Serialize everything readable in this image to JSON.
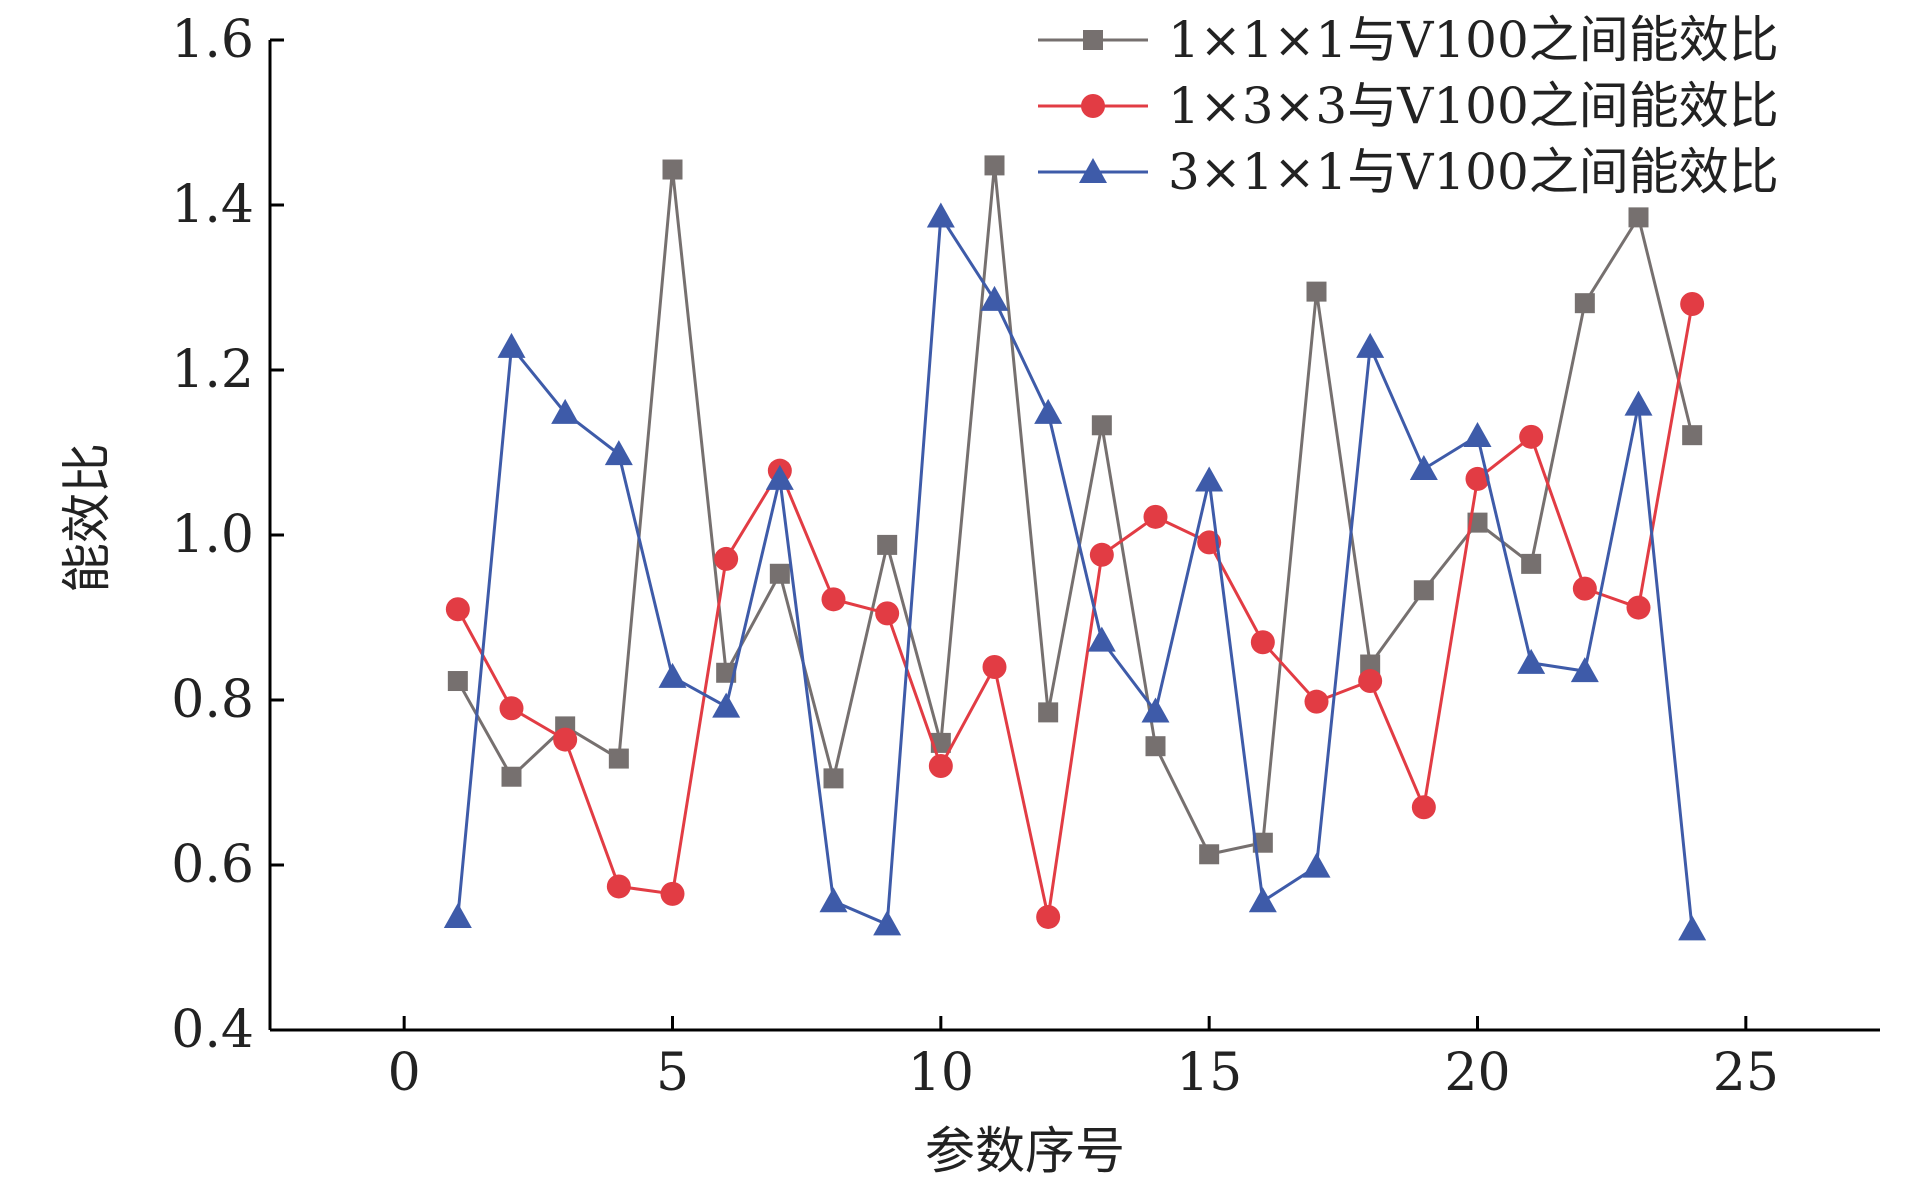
{
  "chart_data": {
    "type": "line",
    "title": "",
    "xlabel": "参数序号",
    "ylabel": "能效比",
    "xlim": [
      -2.5,
      27.5
    ],
    "ylim": [
      0.4,
      1.6
    ],
    "xticks": [
      0,
      5,
      10,
      15,
      20,
      25
    ],
    "yticks": [
      0.4,
      0.6,
      0.8,
      1.0,
      1.2,
      1.4,
      1.6
    ],
    "xtick_labels": [
      "0",
      "5",
      "10",
      "15",
      "20",
      "25"
    ],
    "ytick_labels": [
      "0.4",
      "0.6",
      "0.8",
      "1.0",
      "1.2",
      "1.4",
      "1.6"
    ],
    "grid": false,
    "legend_position": "top-right",
    "x": [
      1,
      2,
      3,
      4,
      5,
      6,
      7,
      8,
      9,
      10,
      11,
      12,
      13,
      14,
      15,
      16,
      17,
      18,
      19,
      20,
      21,
      22,
      23,
      24
    ],
    "series": [
      {
        "name": "1×1×1与V100之间能效比",
        "color": "#76706f",
        "marker": "square",
        "values": [
          0.823,
          0.707,
          0.768,
          0.729,
          1.443,
          0.833,
          0.953,
          0.705,
          0.988,
          0.748,
          1.448,
          0.785,
          1.133,
          0.744,
          0.613,
          0.627,
          1.295,
          0.843,
          0.933,
          1.015,
          0.965,
          1.281,
          1.385,
          1.121
        ]
      },
      {
        "name": "1×3×3与V100之间能效比",
        "color": "#e23c44",
        "marker": "circle",
        "values": [
          0.91,
          0.79,
          0.752,
          0.574,
          0.565,
          0.971,
          1.078,
          0.922,
          0.905,
          0.72,
          0.84,
          0.537,
          0.976,
          1.022,
          0.991,
          0.87,
          0.798,
          0.823,
          0.67,
          1.068,
          1.119,
          0.935,
          0.912,
          1.28
        ]
      },
      {
        "name": "3×1×1与V100之间能效比",
        "color": "#3e5ba9",
        "marker": "triangle",
        "values": [
          0.537,
          1.228,
          1.148,
          1.098,
          0.828,
          0.792,
          1.068,
          0.556,
          0.528,
          1.386,
          1.285,
          1.148,
          0.872,
          0.786,
          1.066,
          0.556,
          0.598,
          1.228,
          1.08,
          1.12,
          0.845,
          0.835,
          1.158,
          0.522
        ]
      }
    ]
  }
}
